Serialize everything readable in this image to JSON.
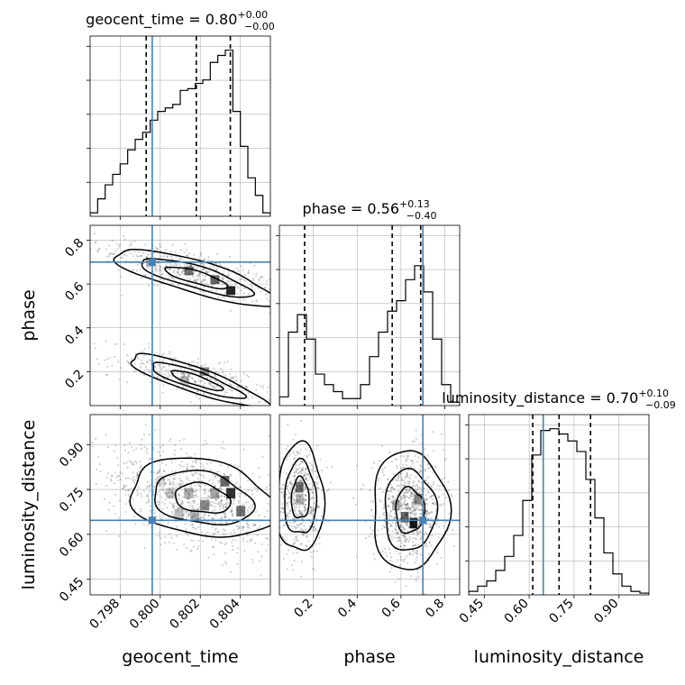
{
  "chart_data": {
    "type": "corner",
    "params": [
      {
        "name": "geocent_time",
        "label": "geocent_time",
        "median": "0.80",
        "plus": "+0.00",
        "minus": "−0.00",
        "true_value": 0.7996
      },
      {
        "name": "phase",
        "label": "phase",
        "median": "0.56",
        "plus": "+0.13",
        "minus": "−0.40",
        "true_value": 0.7
      },
      {
        "name": "luminosity_distance",
        "label": "luminosity_distance",
        "median": "0.70",
        "plus": "+0.10",
        "minus": "−0.09",
        "true_value": 0.647
      }
    ],
    "title_eq": " = ",
    "ranges": {
      "geocent_time": [
        0.7965,
        0.8055
      ],
      "phase": [
        0.045,
        0.868
      ],
      "luminosity_distance": [
        0.398,
        1.0
      ]
    },
    "ticks": {
      "geocent_time": [
        0.798,
        0.8,
        0.802,
        0.804
      ],
      "phase": [
        0.2,
        0.4,
        0.6,
        0.8
      ],
      "phase_y": [
        0.2,
        0.4,
        0.6,
        0.8
      ],
      "luminosity_distance": [
        0.45,
        0.6,
        0.75,
        0.9
      ]
    },
    "tick_labels": {
      "geocent_time": [
        "0.798",
        "0.800",
        "0.802",
        "0.804"
      ],
      "phase": [
        "0.2",
        "0.4",
        "0.6",
        "0.8"
      ],
      "luminosity_distance": [
        "0.45",
        "0.60",
        "0.75",
        "0.90"
      ]
    },
    "quantiles": {
      "geocent_time": [
        0.7993,
        0.8018,
        0.8035
      ],
      "phase": [
        0.16,
        0.56,
        0.69
      ],
      "luminosity_distance": [
        0.612,
        0.7,
        0.805
      ]
    },
    "hist_geocent_time": [
      0.02,
      0.1,
      0.18,
      0.24,
      0.3,
      0.38,
      0.44,
      0.48,
      0.55,
      0.6,
      0.62,
      0.64,
      0.72,
      0.73,
      0.76,
      0.78,
      0.88,
      0.92,
      0.95,
      0.6,
      0.4,
      0.22,
      0.12,
      0.02
    ],
    "hist_phase": [
      0.05,
      0.42,
      0.52,
      0.38,
      0.18,
      0.12,
      0.08,
      0.04,
      0.04,
      0.12,
      0.28,
      0.42,
      0.54,
      0.6,
      0.72,
      0.8,
      0.65,
      0.38,
      0.12,
      0.02
    ],
    "hist_luminosity_distance": [
      0.02,
      0.05,
      0.08,
      0.14,
      0.22,
      0.34,
      0.54,
      0.8,
      0.94,
      0.95,
      0.92,
      0.88,
      0.82,
      0.66,
      0.44,
      0.24,
      0.12,
      0.05,
      0.02,
      0.01
    ],
    "true_color": "#4682b4"
  }
}
